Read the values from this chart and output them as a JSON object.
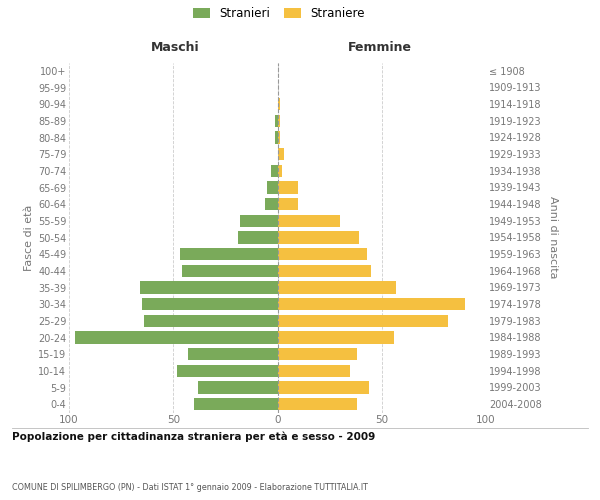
{
  "age_groups": [
    "0-4",
    "5-9",
    "10-14",
    "15-19",
    "20-24",
    "25-29",
    "30-34",
    "35-39",
    "40-44",
    "45-49",
    "50-54",
    "55-59",
    "60-64",
    "65-69",
    "70-74",
    "75-79",
    "80-84",
    "85-89",
    "90-94",
    "95-99",
    "100+"
  ],
  "birth_years": [
    "2004-2008",
    "1999-2003",
    "1994-1998",
    "1989-1993",
    "1984-1988",
    "1979-1983",
    "1974-1978",
    "1969-1973",
    "1964-1968",
    "1959-1963",
    "1954-1958",
    "1949-1953",
    "1944-1948",
    "1939-1943",
    "1934-1938",
    "1929-1933",
    "1924-1928",
    "1919-1923",
    "1914-1918",
    "1909-1913",
    "≤ 1908"
  ],
  "maschi": [
    40,
    38,
    48,
    43,
    97,
    64,
    65,
    66,
    46,
    47,
    19,
    18,
    6,
    5,
    3,
    0,
    1,
    1,
    0,
    0,
    0
  ],
  "femmine": [
    38,
    44,
    35,
    38,
    56,
    82,
    90,
    57,
    45,
    43,
    39,
    30,
    10,
    10,
    2,
    3,
    1,
    1,
    1,
    0,
    0
  ],
  "color_maschi": "#7aaa5a",
  "color_femmine": "#f5c040",
  "color_grid": "#cccccc",
  "color_dashed": "#999999",
  "title1": "Popolazione per cittadinanza straniera per età e sesso - 2009",
  "title2": "COMUNE DI SPILIMBERGO (PN) - Dati ISTAT 1° gennaio 2009 - Elaborazione TUTTITALIA.IT",
  "label_maschi": "Stranieri",
  "label_femmine": "Straniere",
  "header_left": "Maschi",
  "header_right": "Femmine",
  "ylabel_left": "Fasce di età",
  "ylabel_right": "Anni di nascita",
  "xlim": 100,
  "bg_color": "#ffffff"
}
